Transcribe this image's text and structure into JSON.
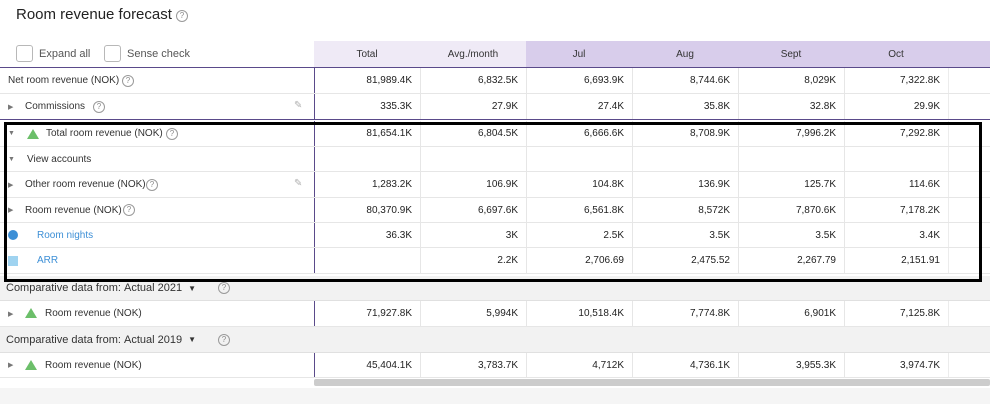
{
  "title": "Room revenue forecast",
  "controls": {
    "expand_all": "Expand all",
    "sense_check": "Sense check"
  },
  "columns": [
    "Total",
    "Avg./month",
    "Jul",
    "Aug",
    "Sept",
    "Oct"
  ],
  "rows": {
    "net": {
      "label": "Net room revenue (NOK)",
      "values": [
        "81,989.4K",
        "6,832.5K",
        "6,693.9K",
        "8,744.6K",
        "8,029K",
        "7,322.8K"
      ]
    },
    "commissions": {
      "label": "Commissions",
      "values": [
        "335.3K",
        "27.9K",
        "27.4K",
        "35.8K",
        "32.8K",
        "29.9K"
      ]
    },
    "total": {
      "label": "Total room revenue (NOK)",
      "values": [
        "81,654.1K",
        "6,804.5K",
        "6,666.6K",
        "8,708.9K",
        "7,996.2K",
        "7,292.8K"
      ]
    },
    "view_accounts": {
      "label": "View accounts"
    },
    "other": {
      "label": "Other room revenue (NOK)",
      "values": [
        "1,283.2K",
        "106.9K",
        "104.8K",
        "136.9K",
        "125.7K",
        "114.6K"
      ]
    },
    "room_revenue": {
      "label": "Room revenue (NOK)",
      "values": [
        "80,370.9K",
        "6,697.6K",
        "6,561.8K",
        "8,572K",
        "7,870.6K",
        "7,178.2K"
      ]
    },
    "room_nights": {
      "label": "Room nights",
      "values": [
        "36.3K",
        "3K",
        "2.5K",
        "3.5K",
        "3.5K",
        "3.4K"
      ]
    },
    "arr": {
      "label": "ARR",
      "values": [
        "",
        "2.2K",
        "2,706.69",
        "2,475.52",
        "2,267.79",
        "2,151.91"
      ]
    }
  },
  "comparisons": [
    {
      "prefix": "Comparative data from:",
      "selected": "Actual 2021",
      "row_label": "Room revenue (NOK)",
      "values": [
        "71,927.8K",
        "5,994K",
        "10,518.4K",
        "7,774.8K",
        "6,901K",
        "7,125.8K"
      ]
    },
    {
      "prefix": "Comparative data from:",
      "selected": "Actual 2019",
      "row_label": "Room revenue (NOK)",
      "values": [
        "45,404.1K",
        "3,783.7K",
        "4,712K",
        "4,736.1K",
        "3,955.3K",
        "3,974.7K"
      ]
    }
  ],
  "icons": {
    "help": "?",
    "pencil": "✎",
    "caret_right": "▶",
    "caret_down": "▼",
    "dropdown": "▼"
  },
  "colors": {
    "accent": "#5a4a8a",
    "triangle": "#6cbf6a",
    "blue": "#3d8fd6",
    "header_light": "#efeaf6",
    "header_mid": "#d8cdeb"
  }
}
